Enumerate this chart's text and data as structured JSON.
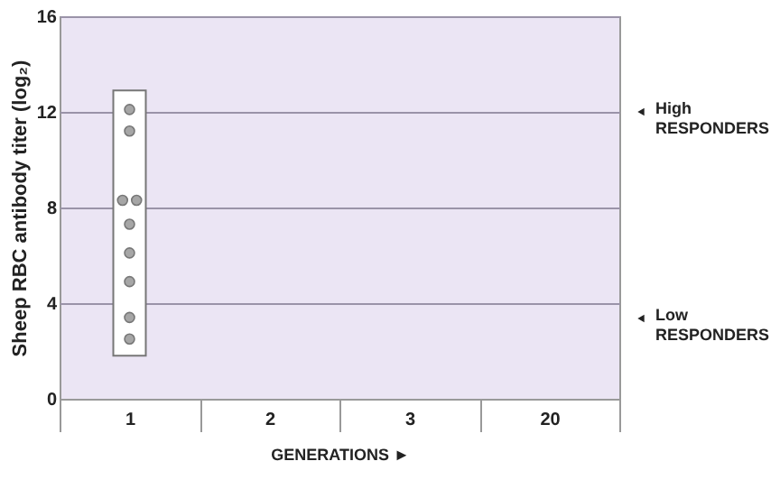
{
  "chart_data": {
    "type": "scatter",
    "ylabel": "Sheep RBC antibody titer (log₂)",
    "xlabel": "GENERATIONS ►",
    "categories": [
      "1",
      "2",
      "3",
      "20"
    ],
    "series": [
      {
        "type": "bar",
        "color": "#ffffff",
        "base": [
          1.8,
          null,
          null,
          null
        ],
        "values": [
          11.1,
          null,
          null,
          null
        ]
      },
      {
        "color": "#a6a6a6",
        "x": [
          "1",
          "1",
          "1",
          "1",
          "1",
          "1",
          "1",
          "1",
          "1"
        ],
        "values": [
          12.1,
          11.2,
          8.3,
          8.3,
          7.3,
          6.1,
          4.9,
          3.4,
          2.5
        ]
      }
    ],
    "ylim": [
      0,
      16
    ],
    "yticks": [
      0,
      4,
      8,
      12,
      16
    ],
    "grid": "y",
    "marker": "circle",
    "annotations": [
      "High\nRESPONDERS",
      "Low\nRESPONDERS"
    ]
  }
}
